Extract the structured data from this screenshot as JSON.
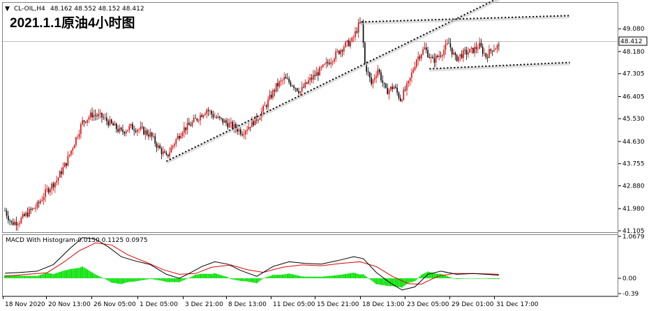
{
  "header": {
    "symbol": "CL-OIL,H4",
    "ohlc": "48.162 48.552 48.152 48.412",
    "annotation": "2021.1.1原油4小时图",
    "menu_arrow": "▼"
  },
  "colors": {
    "up": "#e00000",
    "down": "#000000",
    "macd": "#000000",
    "signal": "#e00000",
    "hist": "#00e000",
    "frame": "#808080"
  },
  "chart_data": [
    {
      "type": "candlestick",
      "title": "",
      "symbol": "CL-OIL",
      "timeframe": "H4",
      "current_price": "48.412",
      "ylim": [
        41.105,
        50.05
      ],
      "y_ticks": [
        "49.080",
        "48.180",
        "47.305",
        "46.405",
        "45.530",
        "44.630",
        "43.755",
        "42.880",
        "41.980",
        "41.105"
      ],
      "x_ticks": [
        "18 Nov 2020",
        "20 Nov 13:00",
        "26 Nov 05:00",
        "1 Dec 05:00",
        "3 Dec 21:00",
        "8 Dec 13:00",
        "11 Dec 05:00",
        "15 Dec 21:00",
        "18 Dec 13:00",
        "23 Dec 05:00",
        "29 Dec 01:00",
        "31 Dec 17:00"
      ],
      "price_path": [
        [
          0,
          41.9
        ],
        [
          4,
          41.4
        ],
        [
          9,
          41.5
        ],
        [
          14,
          41.8
        ],
        [
          20,
          42.1
        ],
        [
          26,
          42.7
        ],
        [
          32,
          43.1
        ],
        [
          38,
          43.8
        ],
        [
          43,
          44.6
        ],
        [
          48,
          45.4
        ],
        [
          54,
          45.7
        ],
        [
          60,
          45.6
        ],
        [
          66,
          45.3
        ],
        [
          72,
          45.0
        ],
        [
          78,
          45.2
        ],
        [
          84,
          45.1
        ],
        [
          90,
          44.9
        ],
        [
          95,
          44.4
        ],
        [
          100,
          44.0
        ],
        [
          105,
          44.6
        ],
        [
          110,
          45.1
        ],
        [
          115,
          45.3
        ],
        [
          120,
          45.6
        ],
        [
          125,
          45.9
        ],
        [
          130,
          45.6
        ],
        [
          136,
          45.4
        ],
        [
          142,
          45.2
        ],
        [
          147,
          45.0
        ],
        [
          152,
          45.3
        ],
        [
          157,
          45.6
        ],
        [
          162,
          46.1
        ],
        [
          168,
          46.8
        ],
        [
          173,
          47.1
        ],
        [
          178,
          46.9
        ],
        [
          183,
          46.6
        ],
        [
          188,
          47.0
        ],
        [
          193,
          47.3
        ],
        [
          198,
          47.6
        ],
        [
          204,
          48.0
        ],
        [
          210,
          48.4
        ],
        [
          215,
          48.6
        ],
        [
          219,
          49.2
        ],
        [
          221,
          49.3
        ],
        [
          223,
          47.7
        ],
        [
          227,
          46.9
        ],
        [
          231,
          47.5
        ],
        [
          236,
          46.6
        ],
        [
          241,
          46.8
        ],
        [
          245,
          46.3
        ],
        [
          250,
          46.9
        ],
        [
          255,
          47.9
        ],
        [
          260,
          48.3
        ],
        [
          265,
          47.8
        ],
        [
          270,
          48.1
        ],
        [
          275,
          48.5
        ],
        [
          279,
          47.9
        ],
        [
          284,
          48.1
        ],
        [
          289,
          48.2
        ],
        [
          294,
          48.4
        ],
        [
          298,
          48.0
        ],
        [
          302,
          48.3
        ],
        [
          306,
          48.412
        ]
      ],
      "trendlines": [
        {
          "name": "rising-support",
          "style": "dotted",
          "from": [
            100,
            43.85
          ],
          "to": [
            306,
            50.3
          ]
        },
        {
          "name": "top-line",
          "style": "dotted",
          "from": [
            221,
            49.35
          ],
          "to": [
            350,
            49.6
          ]
        },
        {
          "name": "consolidation-bottom",
          "style": "dotted",
          "from": [
            263,
            47.5
          ],
          "to": [
            350,
            47.75
          ]
        }
      ]
    },
    {
      "type": "macd-histogram",
      "title": "MACD With Histogram",
      "values_label": "-0.0150 0.1125 0.0975",
      "ylim": [
        -0.39,
        1.0679
      ],
      "y_ticks": [
        "1.0679",
        "0.00",
        "-0.39"
      ],
      "macd_path": [
        [
          0,
          0.13
        ],
        [
          10,
          0.15
        ],
        [
          20,
          0.18
        ],
        [
          30,
          0.35
        ],
        [
          40,
          0.75
        ],
        [
          48,
          1.04
        ],
        [
          56,
          1.0
        ],
        [
          64,
          0.8
        ],
        [
          72,
          0.55
        ],
        [
          80,
          0.45
        ],
        [
          90,
          0.35
        ],
        [
          100,
          0.1
        ],
        [
          108,
          0.0
        ],
        [
          114,
          0.12
        ],
        [
          122,
          0.3
        ],
        [
          130,
          0.42
        ],
        [
          138,
          0.36
        ],
        [
          146,
          0.2
        ],
        [
          156,
          0.05
        ],
        [
          166,
          0.3
        ],
        [
          176,
          0.42
        ],
        [
          186,
          0.38
        ],
        [
          196,
          0.36
        ],
        [
          206,
          0.45
        ],
        [
          216,
          0.55
        ],
        [
          222,
          0.5
        ],
        [
          230,
          0.15
        ],
        [
          238,
          -0.1
        ],
        [
          246,
          -0.3
        ],
        [
          254,
          -0.22
        ],
        [
          262,
          0.1
        ],
        [
          270,
          0.18
        ],
        [
          280,
          0.1
        ],
        [
          290,
          0.12
        ],
        [
          298,
          0.1
        ],
        [
          306,
          0.08
        ]
      ],
      "signal_path": [
        [
          0,
          0.05
        ],
        [
          14,
          0.1
        ],
        [
          26,
          0.14
        ],
        [
          36,
          0.4
        ],
        [
          46,
          0.7
        ],
        [
          56,
          0.9
        ],
        [
          66,
          0.85
        ],
        [
          76,
          0.6
        ],
        [
          88,
          0.4
        ],
        [
          98,
          0.22
        ],
        [
          108,
          0.1
        ],
        [
          118,
          0.12
        ],
        [
          128,
          0.28
        ],
        [
          140,
          0.34
        ],
        [
          150,
          0.22
        ],
        [
          160,
          0.15
        ],
        [
          172,
          0.28
        ],
        [
          184,
          0.34
        ],
        [
          196,
          0.32
        ],
        [
          208,
          0.38
        ],
        [
          220,
          0.42
        ],
        [
          230,
          0.3
        ],
        [
          240,
          0.05
        ],
        [
          250,
          -0.14
        ],
        [
          258,
          -0.15
        ],
        [
          268,
          0.05
        ],
        [
          278,
          0.12
        ],
        [
          290,
          0.12
        ],
        [
          300,
          0.11
        ],
        [
          306,
          0.1
        ]
      ]
    }
  ]
}
